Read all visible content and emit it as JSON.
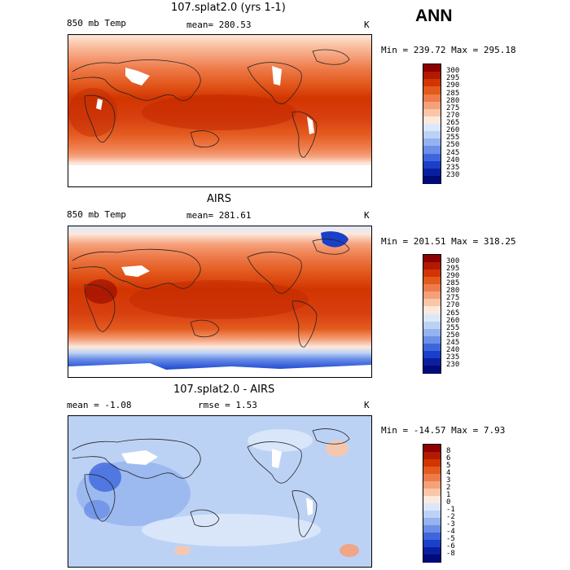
{
  "season": "ANN",
  "panels": [
    {
      "title": "107.splat2.0 (yrs 1-1)",
      "left_label": "850 mb Temp",
      "center_label": "mean= 280.53",
      "right_label": "",
      "units": "K",
      "minmax": "Min = 239.72  Max = 295.18",
      "colorbar_labels": [
        "300",
        "295",
        "290",
        "285",
        "280",
        "275",
        "270",
        "265",
        "260",
        "255",
        "250",
        "245",
        "240",
        "235",
        "230"
      ],
      "colorbar_colors": [
        "#8c0000",
        "#b11a00",
        "#d23500",
        "#e35a1e",
        "#ee7b4a",
        "#f5a07a",
        "#fac6a8",
        "#fde8dc",
        "#dbe8fb",
        "#bcd2f5",
        "#94b3ef",
        "#6b8fe6",
        "#3e66dc",
        "#1a3fc8",
        "#0a1fa0",
        "#000a78"
      ]
    },
    {
      "title": "AIRS",
      "left_label": "850 mb Temp",
      "center_label": "mean= 281.61",
      "right_label": "",
      "units": "K",
      "minmax": "Min = 201.51  Max = 318.25",
      "colorbar_labels": [
        "300",
        "295",
        "290",
        "285",
        "280",
        "275",
        "270",
        "265",
        "260",
        "255",
        "250",
        "245",
        "240",
        "235",
        "230"
      ],
      "colorbar_colors": [
        "#8c0000",
        "#b11a00",
        "#d23500",
        "#e35a1e",
        "#ee7b4a",
        "#f5a07a",
        "#fac6a8",
        "#fde8dc",
        "#dbe8fb",
        "#bcd2f5",
        "#94b3ef",
        "#6b8fe6",
        "#3e66dc",
        "#1a3fc8",
        "#0a1fa0",
        "#000a78"
      ]
    },
    {
      "title": "107.splat2.0 - AIRS",
      "left_label": "mean =   -1.08",
      "center_label": "rmse =    1.53",
      "right_label": "",
      "units": "K",
      "minmax": "Min = -14.57  Max =    7.93",
      "colorbar_labels": [
        "8",
        "6",
        "5",
        "4",
        "3",
        "2",
        "1",
        "0",
        "-1",
        "-2",
        "-3",
        "-4",
        "-5",
        "-6",
        "-8"
      ],
      "colorbar_colors": [
        "#8c0000",
        "#b11a00",
        "#d23500",
        "#e35a1e",
        "#ee7b4a",
        "#f5a07a",
        "#fac6a8",
        "#fde8dc",
        "#dbe8fb",
        "#bcd2f5",
        "#94b3ef",
        "#6b8fe6",
        "#3e66dc",
        "#1a3fc8",
        "#0a1fa0",
        "#000a78"
      ]
    }
  ]
}
